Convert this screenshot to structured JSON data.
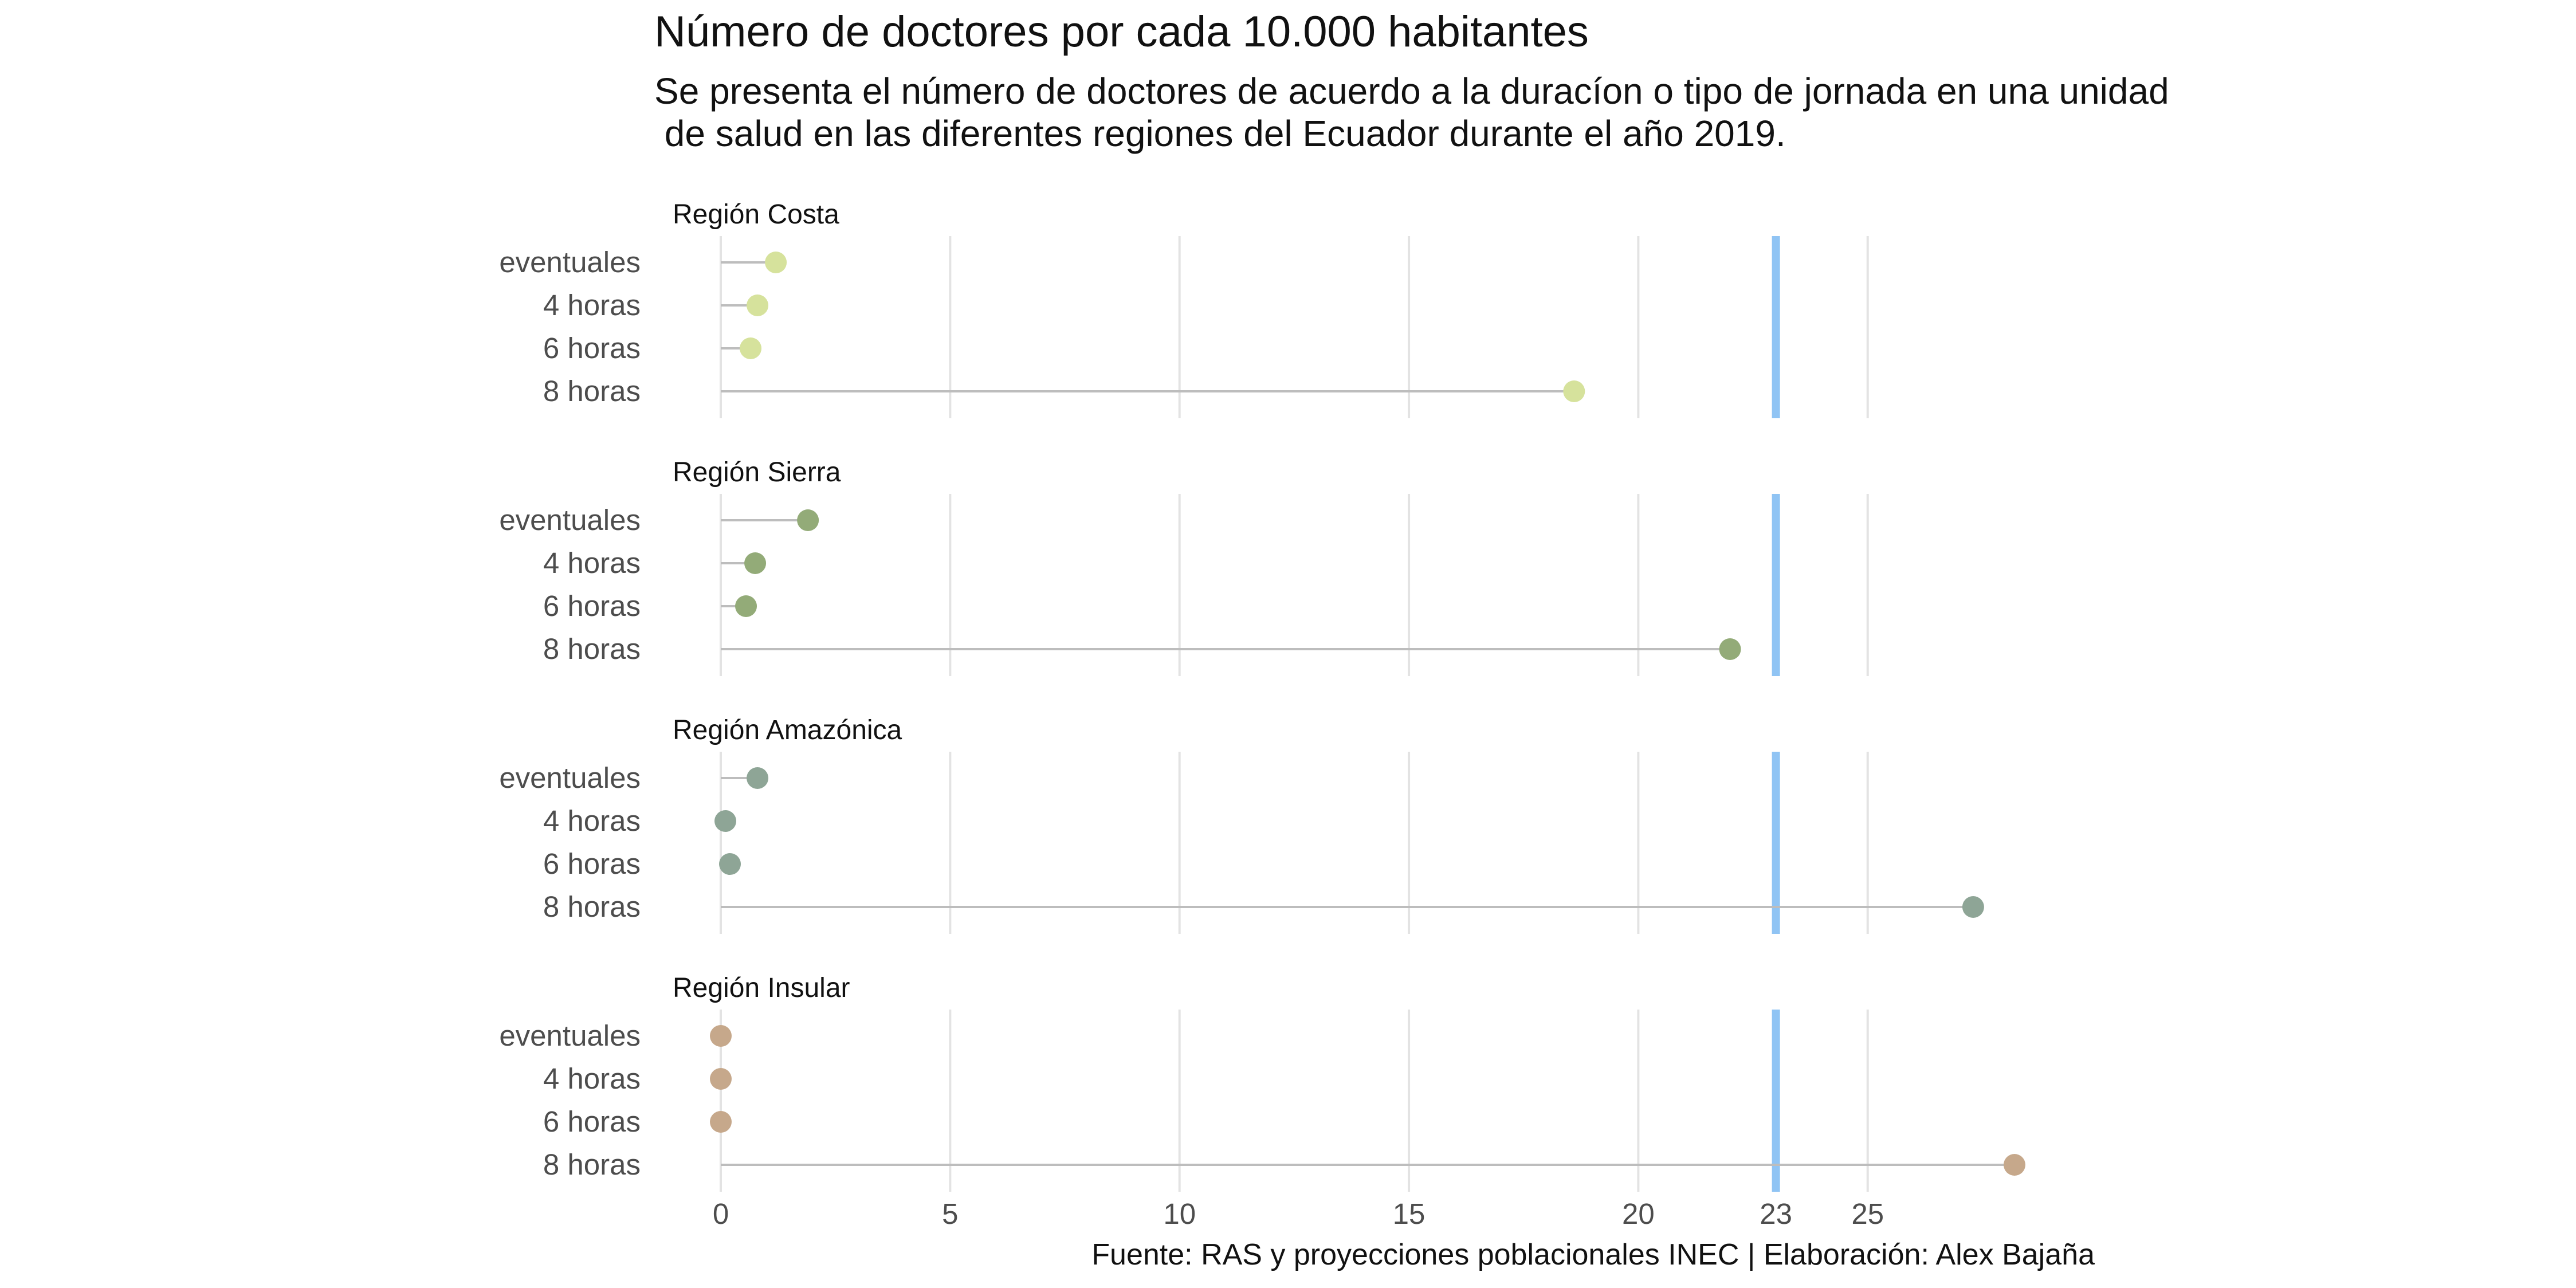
{
  "title": "Número de doctores por cada 10.000 habitantes",
  "subtitle": "Se presenta el número de doctores de acuerdo a la duracíon o tipo de jornada en una unidad\n de salud en las diferentes regiones del Ecuador durante el año 2019.",
  "caption": "Fuente: RAS y proyecciones poblacionales INEC | Elaboración: Alex Bajaña",
  "chart_data": {
    "type": "scatter",
    "subtype": "lollipop, faceted by region",
    "categories": [
      "eventuales",
      "4 horas",
      "6 horas",
      "8 horas"
    ],
    "xlim": [
      0,
      28.5
    ],
    "x_ticks": [
      0,
      5,
      10,
      15,
      20,
      23,
      25
    ],
    "reference_line": {
      "value": 23,
      "color": "#90c4f4"
    },
    "grid": "vertical major",
    "panels": [
      {
        "name": "Región Costa",
        "color": "#d6e29c",
        "values": [
          1.2,
          0.8,
          0.65,
          18.6
        ]
      },
      {
        "name": "Región Sierra",
        "color": "#93ab78",
        "values": [
          1.9,
          0.75,
          0.55,
          22.0
        ]
      },
      {
        "name": "Región Amazónica",
        "color": "#8ea596",
        "values": [
          0.8,
          0.1,
          0.2,
          27.3
        ]
      },
      {
        "name": "Región Insular",
        "color": "#c6a88b",
        "values": [
          0.0,
          0.0,
          0.0,
          28.2
        ]
      }
    ]
  }
}
